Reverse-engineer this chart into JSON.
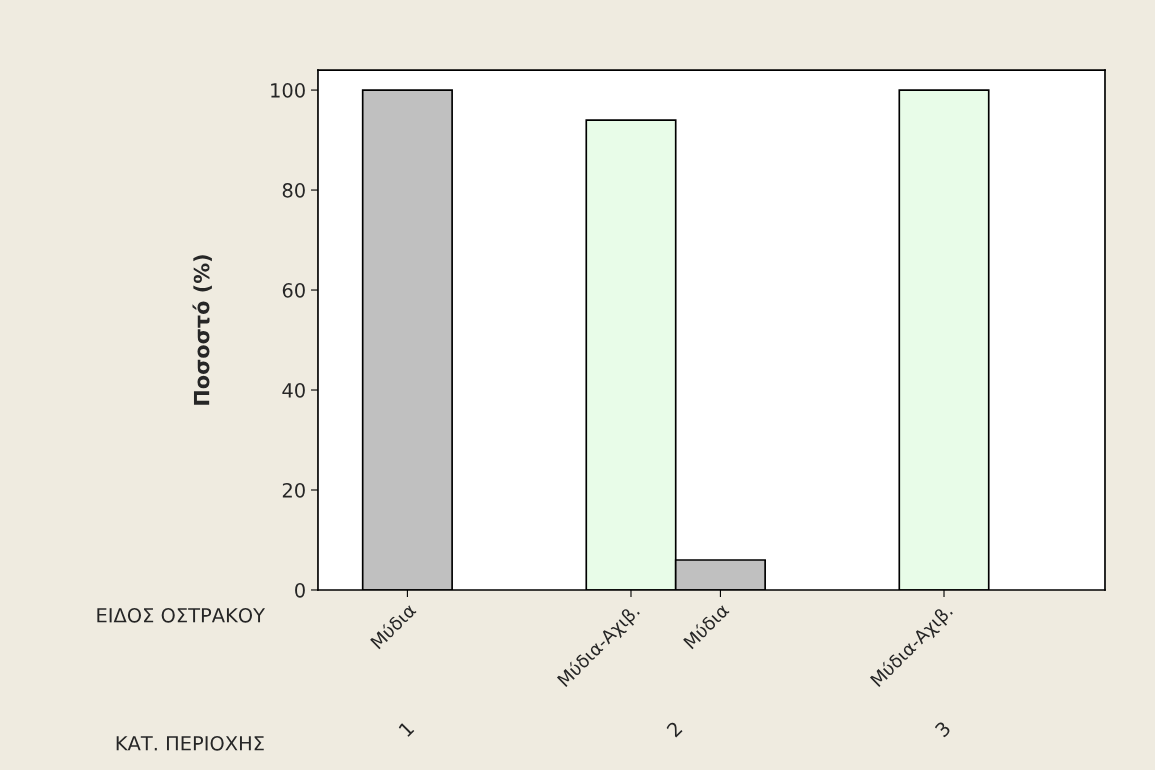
{
  "chart_data": {
    "type": "bar",
    "ylabel": "Ποσοστό (%)",
    "categories": [
      "Μύδια",
      "Μύδια-Αχιβ.",
      "Μύδια",
      "Μύδια-Αχιβ."
    ],
    "values": [
      100,
      94,
      6,
      100
    ],
    "colors": [
      "#c0c0c0",
      "#e8fce8",
      "#c0c0c0",
      "#e8fce8"
    ],
    "ylim": [
      0,
      104
    ],
    "yticks": [
      0,
      20,
      40,
      60,
      80,
      100
    ],
    "annotations": [
      "ΕΙΔΟΣ ΟΣΤΡΑΚΟΥ",
      "ΚΑΤ. ΠΕΡΙΟΧΗΣ",
      "1",
      "2",
      "3"
    ],
    "grid": false,
    "legend": false
  }
}
